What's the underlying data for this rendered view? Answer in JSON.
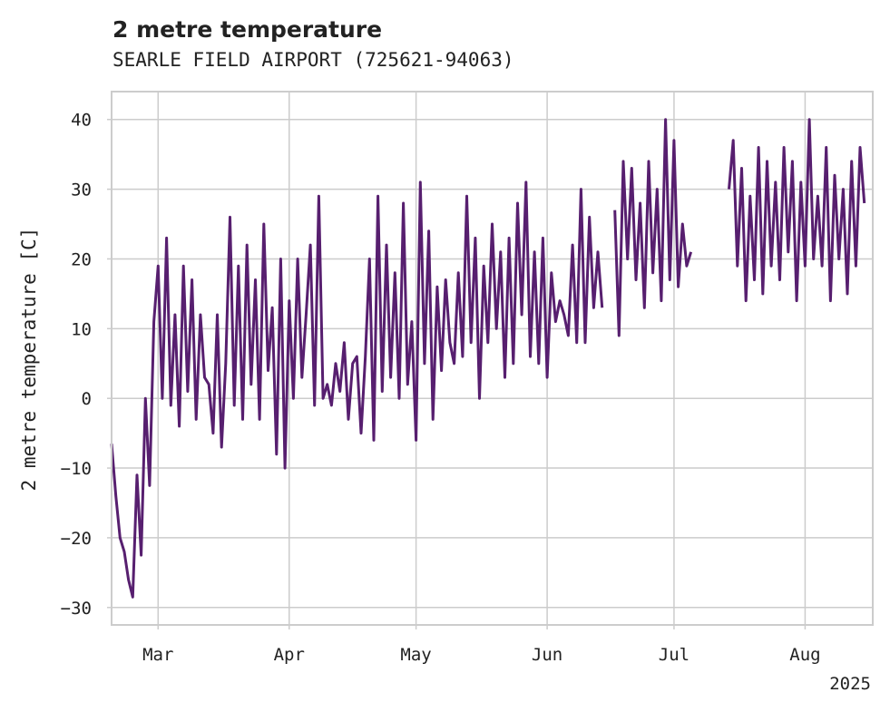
{
  "chart_data": {
    "type": "line",
    "title": "2 metre temperature",
    "subtitle": "SEARLE FIELD AIRPORT (725621-94063)",
    "ylabel": "2 metre temperature [C]",
    "xlabel": "",
    "x_range": [
      "2025-02-18",
      "2025-08-17"
    ],
    "ylim": [
      -32.5,
      44
    ],
    "y_ticks": [
      -30,
      -20,
      -10,
      0,
      10,
      20,
      30,
      40
    ],
    "x_ticks": [
      {
        "date": "2025-03-01",
        "label": "Mar"
      },
      {
        "date": "2025-04-01",
        "label": "Apr"
      },
      {
        "date": "2025-05-01",
        "label": "May"
      },
      {
        "date": "2025-06-01",
        "label": "Jun"
      },
      {
        "date": "2025-07-01",
        "label": "Jul"
      },
      {
        "date": "2025-08-01",
        "label": "Aug"
      }
    ],
    "x_offset_label": "2025",
    "grid": true,
    "series": [
      {
        "color": "#571f6f",
        "segments": [
          [
            [
              "2025-02-18",
              -6.5
            ],
            [
              "2025-02-19",
              -14
            ],
            [
              "2025-02-20",
              -20
            ],
            [
              "2025-02-21",
              -22
            ],
            [
              "2025-02-22",
              -26
            ],
            [
              "2025-02-23",
              -28.5
            ],
            [
              "2025-02-24",
              -11
            ],
            [
              "2025-02-25",
              -22.5
            ],
            [
              "2025-02-26",
              0
            ],
            [
              "2025-02-27",
              -12.5
            ],
            [
              "2025-02-28",
              11
            ],
            [
              "2025-03-01",
              19
            ],
            [
              "2025-03-02",
              0
            ],
            [
              "2025-03-03",
              23
            ],
            [
              "2025-03-04",
              -1
            ],
            [
              "2025-03-05",
              12
            ],
            [
              "2025-03-06",
              -4
            ],
            [
              "2025-03-07",
              19
            ],
            [
              "2025-03-08",
              1
            ],
            [
              "2025-03-09",
              17
            ],
            [
              "2025-03-10",
              -3
            ],
            [
              "2025-03-11",
              12
            ],
            [
              "2025-03-12",
              3
            ],
            [
              "2025-03-13",
              2
            ],
            [
              "2025-03-14",
              -5
            ],
            [
              "2025-03-15",
              12
            ],
            [
              "2025-03-16",
              -7
            ],
            [
              "2025-03-17",
              5
            ],
            [
              "2025-03-18",
              26
            ],
            [
              "2025-03-19",
              -1
            ],
            [
              "2025-03-20",
              19
            ],
            [
              "2025-03-21",
              -3
            ],
            [
              "2025-03-22",
              22
            ],
            [
              "2025-03-23",
              2
            ],
            [
              "2025-03-24",
              17
            ],
            [
              "2025-03-25",
              -3
            ],
            [
              "2025-03-26",
              25
            ],
            [
              "2025-03-27",
              4
            ],
            [
              "2025-03-28",
              13
            ],
            [
              "2025-03-29",
              -8
            ],
            [
              "2025-03-30",
              20
            ],
            [
              "2025-03-31",
              -10
            ],
            [
              "2025-04-01",
              14
            ],
            [
              "2025-04-02",
              0
            ],
            [
              "2025-04-03",
              20
            ],
            [
              "2025-04-04",
              3
            ],
            [
              "2025-04-05",
              12
            ],
            [
              "2025-04-06",
              22
            ],
            [
              "2025-04-07",
              -1
            ],
            [
              "2025-04-08",
              29
            ],
            [
              "2025-04-09",
              0
            ],
            [
              "2025-04-10",
              2
            ],
            [
              "2025-04-11",
              -1
            ],
            [
              "2025-04-12",
              5
            ],
            [
              "2025-04-13",
              1
            ],
            [
              "2025-04-14",
              8
            ],
            [
              "2025-04-15",
              -3
            ],
            [
              "2025-04-16",
              5
            ],
            [
              "2025-04-17",
              6
            ],
            [
              "2025-04-18",
              -5
            ],
            [
              "2025-04-19",
              6
            ],
            [
              "2025-04-20",
              20
            ],
            [
              "2025-04-21",
              -6
            ],
            [
              "2025-04-22",
              29
            ],
            [
              "2025-04-23",
              1
            ],
            [
              "2025-04-24",
              22
            ],
            [
              "2025-04-25",
              3
            ],
            [
              "2025-04-26",
              18
            ],
            [
              "2025-04-27",
              0
            ],
            [
              "2025-04-28",
              28
            ],
            [
              "2025-04-29",
              2
            ],
            [
              "2025-04-30",
              11
            ],
            [
              "2025-05-01",
              -6
            ],
            [
              "2025-05-02",
              31
            ],
            [
              "2025-05-03",
              5
            ],
            [
              "2025-05-04",
              24
            ],
            [
              "2025-05-05",
              -3
            ],
            [
              "2025-05-06",
              16
            ],
            [
              "2025-05-07",
              4
            ],
            [
              "2025-05-08",
              17
            ],
            [
              "2025-05-09",
              8
            ],
            [
              "2025-05-10",
              5
            ],
            [
              "2025-05-11",
              18
            ],
            [
              "2025-05-12",
              6
            ],
            [
              "2025-05-13",
              29
            ],
            [
              "2025-05-14",
              8
            ],
            [
              "2025-05-15",
              23
            ],
            [
              "2025-05-16",
              0
            ],
            [
              "2025-05-17",
              19
            ],
            [
              "2025-05-18",
              8
            ],
            [
              "2025-05-19",
              25
            ],
            [
              "2025-05-20",
              10
            ],
            [
              "2025-05-21",
              21
            ],
            [
              "2025-05-22",
              3
            ],
            [
              "2025-05-23",
              23
            ],
            [
              "2025-05-24",
              5
            ],
            [
              "2025-05-25",
              28
            ],
            [
              "2025-05-26",
              12
            ],
            [
              "2025-05-27",
              31
            ],
            [
              "2025-05-28",
              6
            ],
            [
              "2025-05-29",
              21
            ],
            [
              "2025-05-30",
              5
            ],
            [
              "2025-05-31",
              23
            ],
            [
              "2025-06-01",
              3
            ],
            [
              "2025-06-02",
              18
            ],
            [
              "2025-06-03",
              11
            ],
            [
              "2025-06-04",
              14
            ],
            [
              "2025-06-05",
              12
            ],
            [
              "2025-06-06",
              9
            ],
            [
              "2025-06-07",
              22
            ],
            [
              "2025-06-08",
              8
            ],
            [
              "2025-06-09",
              30
            ],
            [
              "2025-06-10",
              8
            ],
            [
              "2025-06-11",
              26
            ],
            [
              "2025-06-12",
              13
            ],
            [
              "2025-06-13",
              21
            ],
            [
              "2025-06-14",
              13
            ]
          ],
          [
            [
              "2025-06-17",
              27
            ],
            [
              "2025-06-18",
              9
            ],
            [
              "2025-06-19",
              34
            ],
            [
              "2025-06-20",
              20
            ],
            [
              "2025-06-21",
              33
            ],
            [
              "2025-06-22",
              17
            ],
            [
              "2025-06-23",
              28
            ],
            [
              "2025-06-24",
              13
            ],
            [
              "2025-06-25",
              34
            ],
            [
              "2025-06-26",
              18
            ],
            [
              "2025-06-27",
              30
            ],
            [
              "2025-06-28",
              14
            ],
            [
              "2025-06-29",
              40
            ],
            [
              "2025-06-30",
              17
            ],
            [
              "2025-07-01",
              37
            ],
            [
              "2025-07-02",
              16
            ],
            [
              "2025-07-03",
              25
            ],
            [
              "2025-07-04",
              19
            ],
            [
              "2025-07-05",
              21
            ]
          ],
          [
            [
              "2025-07-14",
              30
            ],
            [
              "2025-07-15",
              37
            ],
            [
              "2025-07-16",
              19
            ],
            [
              "2025-07-17",
              33
            ],
            [
              "2025-07-18",
              14
            ],
            [
              "2025-07-19",
              29
            ],
            [
              "2025-07-20",
              17
            ],
            [
              "2025-07-21",
              36
            ],
            [
              "2025-07-22",
              15
            ],
            [
              "2025-07-23",
              34
            ],
            [
              "2025-07-24",
              19
            ],
            [
              "2025-07-25",
              31
            ],
            [
              "2025-07-26",
              17
            ],
            [
              "2025-07-27",
              36
            ],
            [
              "2025-07-28",
              21
            ],
            [
              "2025-07-29",
              34
            ],
            [
              "2025-07-30",
              14
            ],
            [
              "2025-07-31",
              31
            ],
            [
              "2025-08-01",
              19
            ],
            [
              "2025-08-02",
              40
            ],
            [
              "2025-08-03",
              20
            ],
            [
              "2025-08-04",
              29
            ],
            [
              "2025-08-05",
              19
            ],
            [
              "2025-08-06",
              36
            ],
            [
              "2025-08-07",
              14
            ],
            [
              "2025-08-08",
              32
            ],
            [
              "2025-08-09",
              20
            ],
            [
              "2025-08-10",
              30
            ],
            [
              "2025-08-11",
              15
            ],
            [
              "2025-08-12",
              34
            ],
            [
              "2025-08-13",
              19
            ],
            [
              "2025-08-14",
              36
            ],
            [
              "2025-08-15",
              28
            ]
          ]
        ]
      }
    ]
  }
}
